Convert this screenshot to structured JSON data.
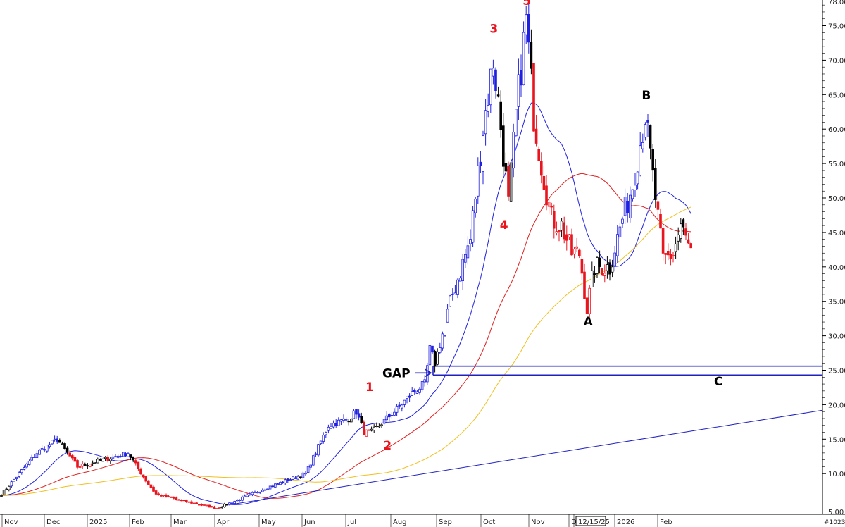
{
  "chart_data": {
    "type": "candlestick",
    "title": "",
    "y_axis": {
      "position": "right",
      "ticks": [
        10,
        15,
        20,
        25,
        30,
        35,
        40,
        45,
        50,
        55,
        60,
        65,
        70,
        75
      ],
      "tick_labels": [
        "10.00",
        "15.00",
        "20.00",
        "25.00",
        "30.00",
        "35.00",
        "40.00",
        "45.00",
        "50.00",
        "55.00",
        "60.00",
        "65.00",
        "70.00",
        "75.00"
      ],
      "range": [
        4.5,
        79
      ],
      "clipped_top_label": "78.00",
      "clipped_bottom_label": "5.00"
    },
    "x_axis": {
      "labels": [
        "Nov",
        "Dec",
        "2025",
        "Feb",
        "Mar",
        "Apr",
        "May",
        "Jun",
        "Jul",
        "Aug",
        "Sep",
        "Oct",
        "Nov",
        "D",
        "12/15/25",
        "2026",
        "Feb"
      ],
      "cursor_label": "12/15/25",
      "corner_label": "#1023"
    },
    "control_points": [
      {
        "i": 0,
        "p": 7
      },
      {
        "i": 14,
        "p": 13
      },
      {
        "i": 22,
        "p": 15
      },
      {
        "i": 30,
        "p": 11
      },
      {
        "i": 40,
        "p": 12
      },
      {
        "i": 50,
        "p": 13
      },
      {
        "i": 57,
        "p": 9
      },
      {
        "i": 61,
        "p": 7
      },
      {
        "i": 72,
        "p": 6
      },
      {
        "i": 85,
        "p": 5
      },
      {
        "i": 92,
        "p": 6
      },
      {
        "i": 105,
        "p": 8
      },
      {
        "i": 120,
        "p": 10
      },
      {
        "i": 129,
        "p": 17
      },
      {
        "i": 137,
        "p": 18
      },
      {
        "i": 140,
        "p": 19
      },
      {
        "i": 143,
        "p": 16
      },
      {
        "i": 146,
        "p": 16
      },
      {
        "i": 155,
        "p": 19
      },
      {
        "i": 163,
        "p": 22
      },
      {
        "i": 167,
        "p": 23
      },
      {
        "i": 169,
        "p": 28
      },
      {
        "i": 171,
        "p": 26
      },
      {
        "i": 178,
        "p": 36
      },
      {
        "i": 185,
        "p": 44
      },
      {
        "i": 190,
        "p": 60
      },
      {
        "i": 194,
        "p": 70
      },
      {
        "i": 196,
        "p": 64
      },
      {
        "i": 200,
        "p": 49
      },
      {
        "i": 203,
        "p": 62
      },
      {
        "i": 207,
        "p": 76
      },
      {
        "i": 210,
        "p": 62
      },
      {
        "i": 213,
        "p": 55
      },
      {
        "i": 217,
        "p": 47
      },
      {
        "i": 221,
        "p": 46
      },
      {
        "i": 225,
        "p": 42
      },
      {
        "i": 228,
        "p": 42
      },
      {
        "i": 231,
        "p": 34
      },
      {
        "i": 234,
        "p": 40
      },
      {
        "i": 240,
        "p": 40
      },
      {
        "i": 245,
        "p": 47
      },
      {
        "i": 249,
        "p": 52
      },
      {
        "i": 254,
        "p": 62
      },
      {
        "i": 258,
        "p": 50
      },
      {
        "i": 261,
        "p": 41
      },
      {
        "i": 265,
        "p": 42
      },
      {
        "i": 268,
        "p": 46
      },
      {
        "i": 272,
        "p": 42
      }
    ],
    "moving_averages": [
      {
        "period": 20,
        "color": "#2020e0"
      },
      {
        "period": 50,
        "color": "#e02020"
      },
      {
        "period": 100,
        "color": "#f0c020"
      }
    ],
    "levels": [
      {
        "price": 25.6,
        "color": "#2020c0"
      },
      {
        "price": 24.3,
        "color": "#2020c0"
      }
    ],
    "trendline": {
      "from": {
        "i": 92,
        "p": 5.6
      },
      "to": {
        "i": 320,
        "p": 19.2
      },
      "color": "#2020c0"
    },
    "annotations": [
      {
        "text": "1",
        "i": 145,
        "p": 22.0,
        "color": "red"
      },
      {
        "text": "2",
        "i": 152,
        "p": 13.5,
        "color": "red"
      },
      {
        "text": "3",
        "i": 194,
        "p": 74.0,
        "color": "red"
      },
      {
        "text": "4",
        "i": 198,
        "p": 45.5,
        "color": "red"
      },
      {
        "text": "5",
        "i": 207,
        "p": 78.0,
        "color": "red"
      },
      {
        "text": "A",
        "i": 231,
        "p": 31.5,
        "color": "black"
      },
      {
        "text": "B",
        "i": 254,
        "p": 64.3,
        "color": "black"
      },
      {
        "text": "C",
        "i": 280,
        "p": 22.8,
        "color": "black"
      },
      {
        "text": "GAP",
        "i": 155,
        "p": 24.0,
        "color": "black"
      }
    ]
  }
}
